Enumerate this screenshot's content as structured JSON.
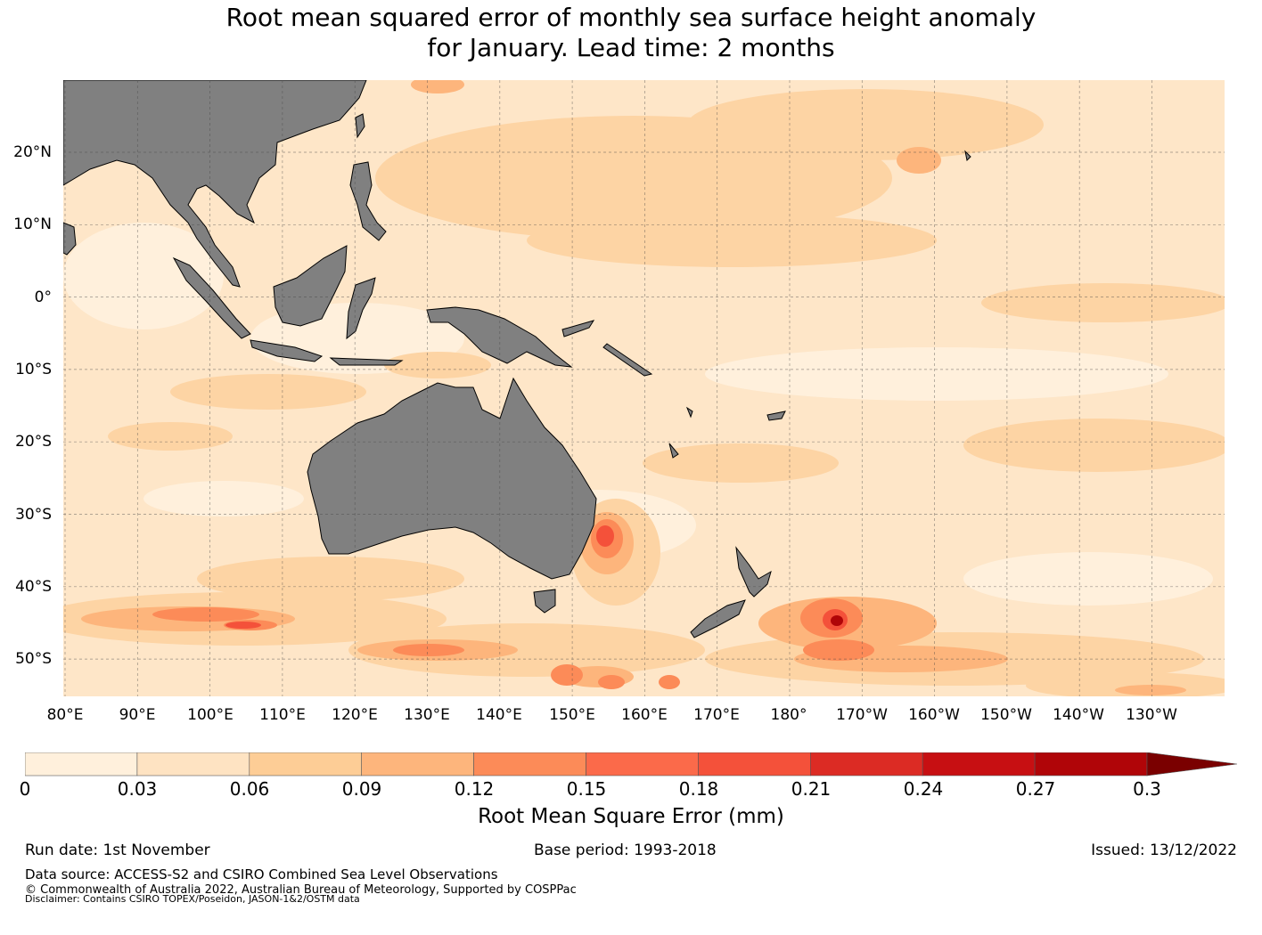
{
  "title": {
    "line1": "Root mean squared error of monthly sea surface height anomaly",
    "line2": "for January. Lead time: 2 months"
  },
  "map": {
    "region": "Western Pacific and Australia",
    "lon_labels": [
      "80°E",
      "90°E",
      "100°E",
      "110°E",
      "120°E",
      "130°E",
      "140°E",
      "150°E",
      "160°E",
      "170°E",
      "180°",
      "170°W",
      "160°W",
      "150°W",
      "140°W",
      "130°W"
    ],
    "lat_labels": [
      "20°N",
      "10°N",
      "0°",
      "10°S",
      "20°S",
      "30°S",
      "40°S",
      "50°S"
    ],
    "land_color": "#808080",
    "grid_style": "dashed"
  },
  "colorbar": {
    "tick_labels": [
      "0",
      "0.03",
      "0.06",
      "0.09",
      "0.12",
      "0.15",
      "0.18",
      "0.21",
      "0.24",
      "0.27",
      "0.3"
    ],
    "colors": [
      "#fff0dc",
      "#fee3c2",
      "#fdcd96",
      "#fdb57c",
      "#fc8b58",
      "#fb6a4a",
      "#f4513a",
      "#dc2b24",
      "#c70f12",
      "#b00508",
      "#7a0000"
    ],
    "extend": "max",
    "label": "Root Mean Square Error (mm)"
  },
  "footer": {
    "run_date": "Run date: 1st November",
    "base_period": "Base period: 1993-2018",
    "issued": "Issued: 13/12/2022",
    "data_source": "Data source: ACCESS-S2 and CSIRO Combined Sea Level Observations",
    "copyright": "© Commonwealth of Australia 2022, Australian Bureau of Meteorology, Supported by COSPPac",
    "disclaimer": "Disclaimer: Contains CSIRO TOPEX/Poseidon, JASON-1&2/OSTM data"
  }
}
